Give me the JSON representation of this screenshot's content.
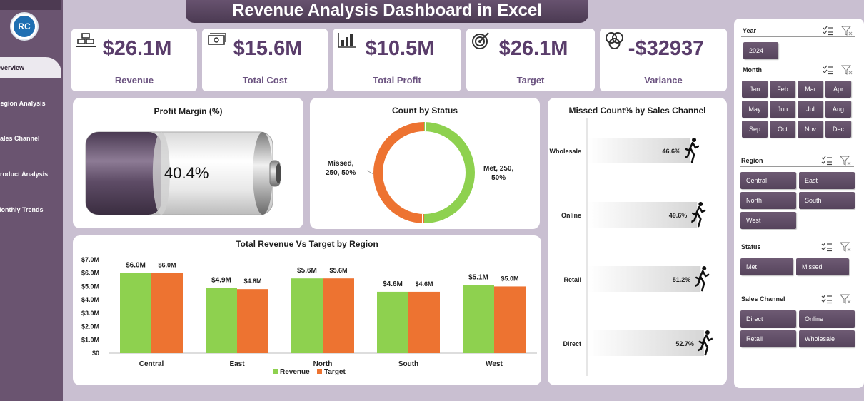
{
  "title": "Revenue Analysis Dashboard in Excel",
  "logo_text": "RC",
  "nav": [
    {
      "label": "Overview"
    },
    {
      "label": "Region Analysis"
    },
    {
      "label": "Sales Channel"
    },
    {
      "label": "Product Analysis"
    },
    {
      "label": "Monthly Trends"
    }
  ],
  "kpis": [
    {
      "value": "$26.1M",
      "label": "Revenue",
      "icon": "gold-bars-icon"
    },
    {
      "value": "$15.6M",
      "label": "Total Cost",
      "icon": "cash-icon"
    },
    {
      "value": "$10.5M",
      "label": "Total Profit",
      "icon": "bar-chart-icon"
    },
    {
      "value": "$26.1M",
      "label": "Target",
      "icon": "target-icon"
    },
    {
      "value": "-$32937",
      "label": "Variance",
      "icon": "venn-icon"
    }
  ],
  "profit_margin": {
    "title": "Profit Margin (%)",
    "value_label": "40.4%",
    "value": 40.4
  },
  "count_status": {
    "title": "Count by Status",
    "missed_label_1": "Missed,",
    "missed_label_2": "250, 50%",
    "met_label_1": "Met, 250,",
    "met_label_2": "50%",
    "colors": {
      "met": "#8ed14f",
      "missed": "#ed7331"
    }
  },
  "missed_channel": {
    "title": "Missed Count% by Sales Channel",
    "items": [
      {
        "label": "Wholesale",
        "value_label": "46.6%",
        "value": 46.6
      },
      {
        "label": "Online",
        "value_label": "49.6%",
        "value": 49.6
      },
      {
        "label": "Retail",
        "value_label": "51.2%",
        "value": 51.2
      },
      {
        "label": "Direct",
        "value_label": "52.7%",
        "value": 52.7
      }
    ]
  },
  "chart_data": {
    "type": "bar",
    "title": "Total Revenue Vs Target by Region",
    "categories": [
      "Central",
      "East",
      "North",
      "South",
      "West"
    ],
    "series": [
      {
        "name": "Revenue",
        "values": [
          6.0,
          4.9,
          5.6,
          4.6,
          5.1
        ],
        "labels": [
          "$6.0M",
          "$4.9M",
          "$5.6M",
          "$4.6M",
          "$5.1M"
        ],
        "color": "#8ed14f"
      },
      {
        "name": "Target",
        "values": [
          6.0,
          4.8,
          5.6,
          4.6,
          5.0
        ],
        "labels": [
          "$6.0M",
          "$4.8M",
          "$5.6M",
          "$4.6M",
          "$5.0M"
        ],
        "color": "#ed7331"
      }
    ],
    "ylim": [
      0,
      7
    ],
    "yticks": [
      "$0",
      "$1.0M",
      "$2.0M",
      "$3.0M",
      "$4.0M",
      "$5.0M",
      "$6.0M",
      "$7.0M"
    ],
    "legend": "bottom"
  },
  "slicers": {
    "year": {
      "title": "Year",
      "items": [
        "2024"
      ]
    },
    "month": {
      "title": "Month",
      "items": [
        "Jan",
        "Feb",
        "Mar",
        "Apr",
        "May",
        "Jun",
        "Jul",
        "Aug",
        "Sep",
        "Oct",
        "Nov",
        "Dec"
      ]
    },
    "region": {
      "title": "Region",
      "items": [
        "Central",
        "East",
        "North",
        "South",
        "West"
      ]
    },
    "status": {
      "title": "Status",
      "items": [
        "Met",
        "Missed"
      ]
    },
    "channel": {
      "title": "Sales Channel",
      "items": [
        "Direct",
        "Online",
        "Retail",
        "Wholesale"
      ]
    }
  }
}
